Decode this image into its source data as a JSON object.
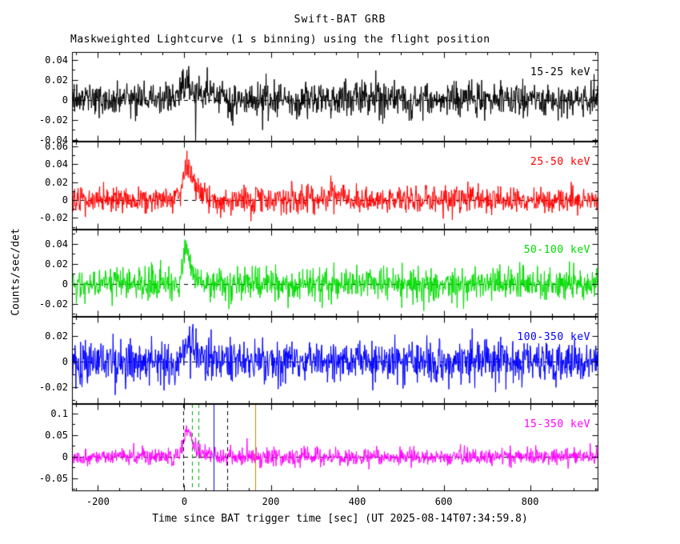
{
  "chart_data": {
    "type": "line",
    "title": "Swift-BAT GRB",
    "subtitle": "Maskweighted Lightcurve (1 s binning) using the flight position",
    "xlabel": "Time since BAT trigger time [sec] (UT 2025-08-14T07:34:59.8)",
    "ylabel": "Counts/sec/det",
    "binning_sec": 1,
    "x_range": [
      -260,
      958
    ],
    "x_major_ticks": [
      -200,
      0,
      200,
      400,
      600,
      800
    ],
    "x_tick_labels": [
      "-200",
      "0",
      "200",
      "400",
      "600",
      "800"
    ],
    "x_minor_tick_step": 50,
    "grid": false,
    "legend_position": "inline-top-right",
    "panels": [
      {
        "label": "15-25 keV",
        "color": "#000000",
        "ylim": [
          -0.042,
          0.048
        ],
        "yticks": [
          -0.04,
          -0.02,
          0,
          0.02,
          0.04
        ],
        "ytick_labels": [
          "-0.04",
          "-0.02",
          "0",
          "0.02",
          "0.04"
        ],
        "zero_line": true,
        "noise_sigma": 0.0085,
        "burst": {
          "t0": 8,
          "amp": 0.015,
          "rise": 20,
          "decay": 40
        },
        "spikes": [
          {
            "t": 26,
            "v": -0.042
          }
        ],
        "markers": []
      },
      {
        "label": "25-50 keV",
        "color": "#ff0000",
        "ylim": [
          -0.033,
          0.065
        ],
        "yticks": [
          -0.02,
          0,
          0.02,
          0.04,
          0.06
        ],
        "ytick_labels": [
          "-0.02",
          "0",
          "0.02",
          "0.04",
          "0.06"
        ],
        "zero_line": true,
        "noise_sigma": 0.0075,
        "burst": {
          "t0": 10,
          "amp": 0.04,
          "rise": 12,
          "decay": 18
        },
        "spikes": [],
        "markers": []
      },
      {
        "label": "50-100 keV",
        "color": "#00dd00",
        "ylim": [
          -0.033,
          0.054
        ],
        "yticks": [
          -0.02,
          0,
          0.02,
          0.04
        ],
        "ytick_labels": [
          "-0.02",
          "0",
          "0.02",
          "0.04"
        ],
        "zero_line": true,
        "noise_sigma": 0.0078,
        "burst": {
          "t0": 5,
          "amp": 0.042,
          "rise": 7,
          "decay": 11
        },
        "spikes": [],
        "markers": []
      },
      {
        "label": "100-350 keV",
        "color": "#0000ff",
        "ylim": [
          -0.033,
          0.035
        ],
        "yticks": [
          -0.02,
          0,
          0.02
        ],
        "ytick_labels": [
          "-0.02",
          "0",
          "0.02"
        ],
        "zero_line": true,
        "noise_sigma": 0.008,
        "burst": {
          "t0": 10,
          "amp": 0.012,
          "rise": 10,
          "decay": 20
        },
        "spikes": [],
        "markers": []
      },
      {
        "label": "15-350 keV",
        "color": "#ff00ff",
        "ylim": [
          -0.08,
          0.122
        ],
        "yticks": [
          -0.05,
          0,
          0.05,
          0.1
        ],
        "ytick_labels": [
          "-0.05",
          "0",
          "0.05",
          "0.1"
        ],
        "zero_line": true,
        "noise_sigma": 0.0095,
        "burst": {
          "t0": 8,
          "amp": 0.07,
          "rise": 9,
          "decay": 15
        },
        "spikes": [],
        "markers": [
          {
            "t": -2,
            "color": "#000000",
            "style": "dashed"
          },
          {
            "t": 17,
            "color": "#00aa00",
            "style": "dashed"
          },
          {
            "t": 33,
            "color": "#00aa00",
            "style": "dashed"
          },
          {
            "t": 68,
            "color": "#0000ff",
            "style": "solid"
          },
          {
            "t": 100,
            "color": "#000000",
            "style": "dashed"
          },
          {
            "t": 163,
            "color": "#cc8800",
            "style": "solid"
          }
        ]
      }
    ]
  }
}
